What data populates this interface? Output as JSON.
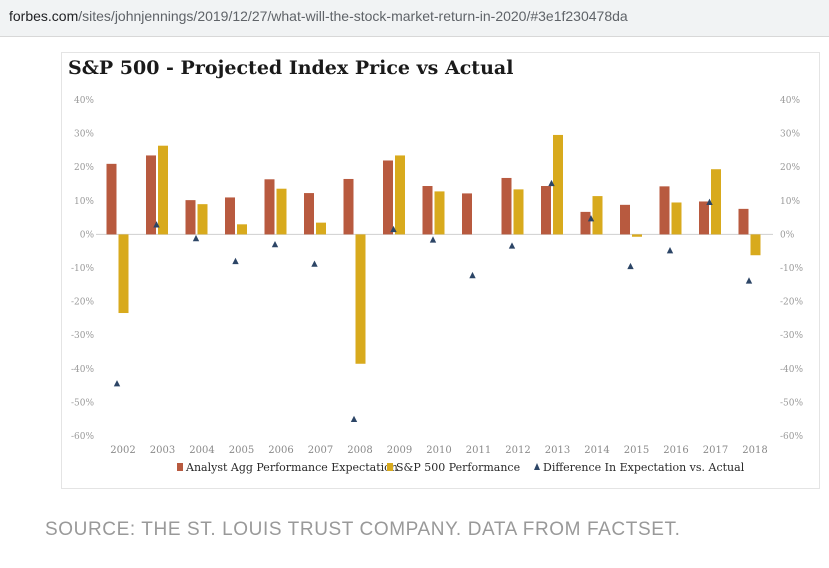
{
  "browser": {
    "url_host": "forbes.com",
    "url_path": "/sites/johnjennings/2019/12/27/what-will-the-stock-market-return-in-2020/#3e1f230478da"
  },
  "source_text": "SOURCE: THE ST. LOUIS TRUST COMPANY. DATA FROM FACTSET.",
  "colors": {
    "expectation": "#b85a3f",
    "performance": "#d8aa1d",
    "difference": "#2c4566",
    "axis_text": "#9a9a9a",
    "zero_line": "#cfcfcf"
  },
  "chart_data": {
    "type": "bar",
    "title": "S&P 500 - Projected Index Price vs Actual",
    "xlabel": "",
    "ylabel": "",
    "ylim": [
      -60,
      40
    ],
    "y_ticks": [
      "40%",
      "30%",
      "20%",
      "10%",
      "0%",
      "-10%",
      "-20%",
      "-30%",
      "-40%",
      "-50%",
      "-60%"
    ],
    "y_tick_values": [
      40,
      30,
      20,
      10,
      0,
      -10,
      -20,
      -30,
      -40,
      -50,
      -60
    ],
    "grid": false,
    "legend_position": "bottom",
    "categories": [
      "2002",
      "2003",
      "2004",
      "2005",
      "2006",
      "2007",
      "2008",
      "2009",
      "2010",
      "2011",
      "2012",
      "2013",
      "2014",
      "2015",
      "2016",
      "2017",
      "2018"
    ],
    "series": [
      {
        "name": "Analyst Agg Performance Expectation",
        "type": "bar",
        "values": [
          21,
          23.5,
          10.2,
          11,
          16.4,
          12.3,
          16.5,
          22,
          14.4,
          12.2,
          16.8,
          14.4,
          6.7,
          8.8,
          14.3,
          9.8,
          7.6
        ]
      },
      {
        "name": "S&P 500 Performance",
        "type": "bar",
        "values": [
          -23.4,
          26.4,
          9,
          3,
          13.6,
          3.5,
          -38.5,
          23.5,
          12.8,
          0,
          13.4,
          29.6,
          11.4,
          -0.7,
          9.5,
          19.4,
          -6.2
        ]
      },
      {
        "name": "Difference In Expectation vs. Actual",
        "type": "scatter",
        "values": [
          -44.4,
          2.9,
          -1.2,
          -8,
          -3,
          -8.8,
          -55,
          1.5,
          -1.6,
          -12.2,
          -3.4,
          15.2,
          4.7,
          -9.5,
          -4.8,
          9.6,
          -13.8
        ]
      }
    ]
  }
}
